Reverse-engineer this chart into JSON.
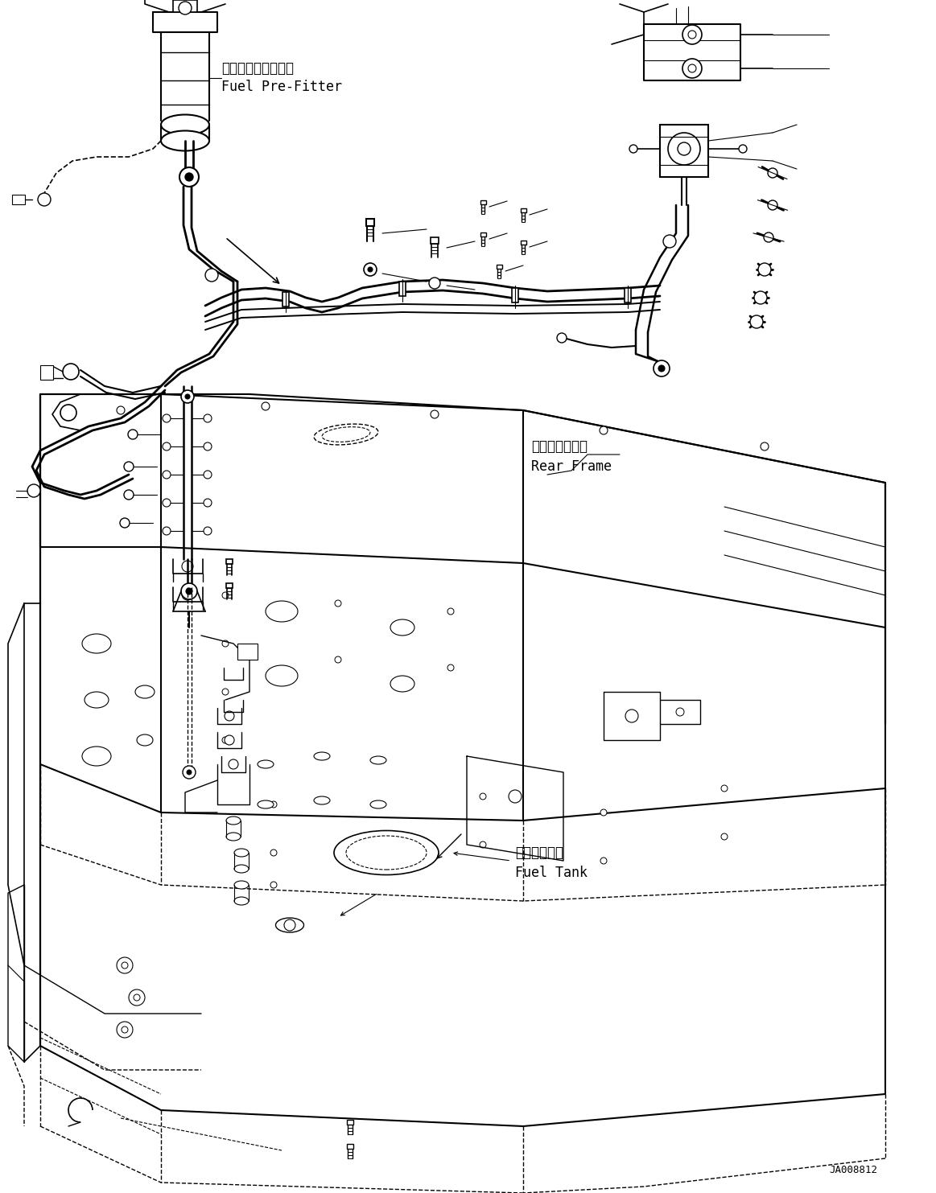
{
  "background_color": "#ffffff",
  "line_color": "#000000",
  "text_color": "#000000",
  "labels": {
    "fuel_pre_filter_jp": "フェルプレフィルタ",
    "fuel_pre_filter_en": "Fuel Pre-Fitter",
    "rear_frame_jp": "リヤーフレーム",
    "rear_frame_en": "Rear Frame",
    "fuel_tank_jp": "フェルタンク",
    "fuel_tank_en": "Fuel Tank",
    "part_number": "JA008812"
  },
  "figsize": [
    11.63,
    14.83
  ],
  "dpi": 100
}
